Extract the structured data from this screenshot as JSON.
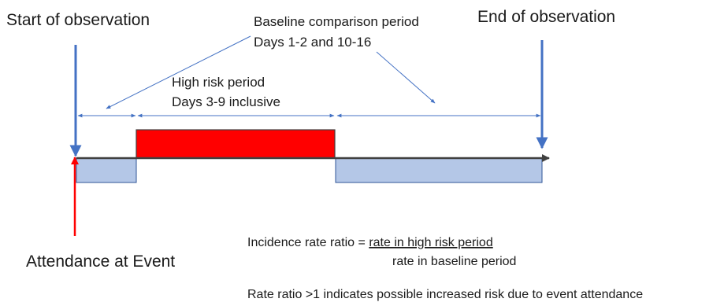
{
  "labels": {
    "start": "Start of observation",
    "end": "End of observation",
    "baseline_title": "Baseline comparison period",
    "baseline_days": "Days 1-2 and 10-16",
    "high_risk_title": "High risk period",
    "high_risk_days": "Days 3-9 inclusive",
    "attendance": "Attendance at Event",
    "irr_prefix": "Incidence rate ratio = ",
    "irr_numerator": "rate in high risk period",
    "irr_denominator": "rate in baseline period",
    "rate_ratio_note": "Rate ratio >1 indicates possible increased risk due to event attendance"
  },
  "colors": {
    "baseline_fill": "#b4c7e7",
    "baseline_stroke": "#2f5597",
    "high_risk_fill": "#ff0000",
    "high_risk_stroke": "#404040",
    "marker_arrow": "#4472c4",
    "event_arrow": "#ff0000",
    "timeline": "#404040",
    "annotation": "#4472c4"
  },
  "icons": {
    "start_marker": "down-arrow-icon",
    "end_marker": "down-arrow-icon",
    "event_marker": "up-arrow-icon"
  }
}
